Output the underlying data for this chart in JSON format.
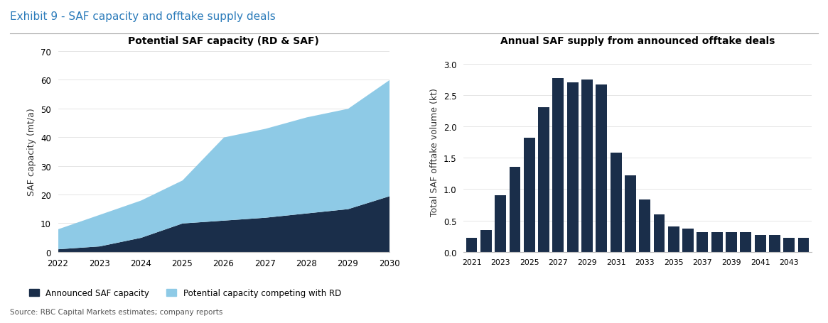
{
  "exhibit_title": "Exhibit 9 - SAF capacity and offtake supply deals",
  "source_text": "Source: RBC Capital Markets estimates; company reports",
  "left_chart": {
    "title": "Potential SAF capacity (RD & SAF)",
    "ylabel": "SAF capacity (mt/a)",
    "years": [
      2022,
      2023,
      2024,
      2025,
      2026,
      2027,
      2028,
      2029,
      2030
    ],
    "announced_saf": [
      1.0,
      2.0,
      5.0,
      10.0,
      11.0,
      12.0,
      13.5,
      15.0,
      19.5
    ],
    "potential_competing": [
      7.0,
      11.0,
      13.0,
      15.0,
      29.0,
      31.0,
      33.5,
      35.0,
      40.5
    ],
    "color_announced": "#1a2e4a",
    "color_potential": "#8ecae6",
    "ylim": [
      0,
      70
    ],
    "yticks": [
      0,
      10,
      20,
      30,
      40,
      50,
      60,
      70
    ],
    "legend_announced": "Announced SAF capacity",
    "legend_potential": "Potential capacity competing with RD"
  },
  "right_chart": {
    "title": "Annual SAF supply from announced offtake deals",
    "ylabel": "Total SAF offtake volume (kt)",
    "years": [
      2021,
      2022,
      2023,
      2024,
      2025,
      2026,
      2027,
      2028,
      2029,
      2030,
      2031,
      2032,
      2033,
      2034,
      2035,
      2036,
      2037,
      2038,
      2039,
      2040,
      2041,
      2042,
      2043,
      2044
    ],
    "values": [
      0.22,
      0.35,
      0.9,
      1.35,
      1.82,
      2.3,
      2.77,
      2.7,
      2.75,
      2.67,
      1.58,
      1.22,
      0.83,
      0.6,
      0.4,
      0.37,
      0.31,
      0.31,
      0.31,
      0.31,
      0.27,
      0.27,
      0.22,
      0.22
    ],
    "bar_color": "#1a2e4a",
    "ylim": [
      0,
      3.2
    ],
    "yticks": [
      0.0,
      0.5,
      1.0,
      1.5,
      2.0,
      2.5,
      3.0
    ]
  },
  "background_color": "#ffffff"
}
